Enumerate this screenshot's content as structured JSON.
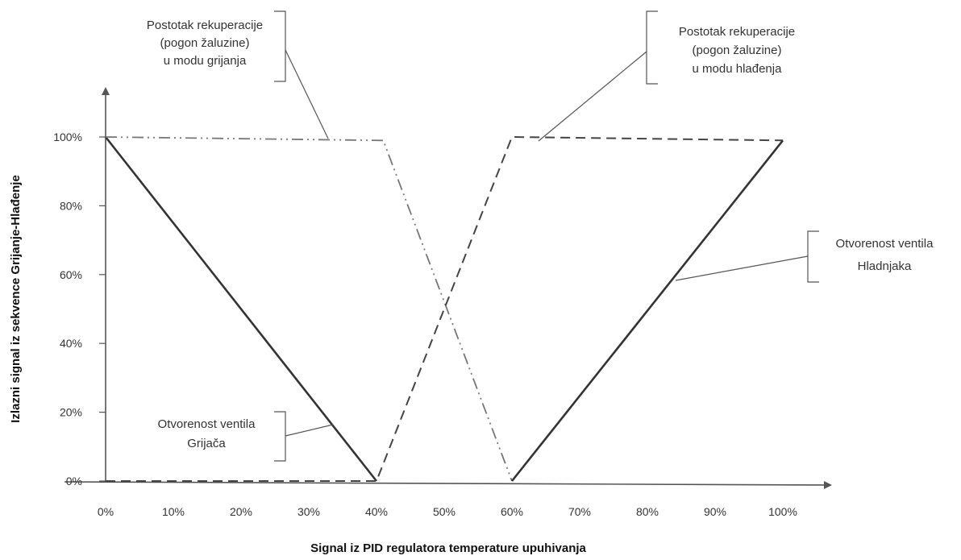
{
  "chart_data": {
    "type": "line",
    "xlabel": "Signal iz PID regulatora temperature upuhivanja",
    "ylabel": "Izlazni signal iz sekvence Grijanje-Hlađenje",
    "x_ticks": [
      "0%",
      "10%",
      "20%",
      "30%",
      "40%",
      "50%",
      "60%",
      "70%",
      "80%",
      "90%",
      "100%"
    ],
    "y_ticks": [
      "0%",
      "20%",
      "40%",
      "60%",
      "80%",
      "100%"
    ],
    "xlim": [
      0,
      100
    ],
    "ylim": [
      0,
      100
    ],
    "grid": false,
    "series": [
      {
        "key": "heating_valve",
        "line_style": "solid",
        "color": "#333333",
        "points": [
          [
            0,
            100
          ],
          [
            40,
            0
          ]
        ]
      },
      {
        "key": "recovery_heating",
        "line_style": "dash-dot-dot",
        "color": "#777777",
        "points": [
          [
            0,
            100
          ],
          [
            41,
            99
          ],
          [
            60,
            0
          ]
        ]
      },
      {
        "key": "recovery_cooling",
        "line_style": "dashed",
        "color": "#444444",
        "points": [
          [
            0,
            0
          ],
          [
            40,
            0
          ],
          [
            60,
            100
          ],
          [
            100,
            99
          ]
        ]
      },
      {
        "key": "cooling_valve",
        "line_style": "solid",
        "color": "#333333",
        "points": [
          [
            60,
            0
          ],
          [
            100,
            99
          ]
        ]
      }
    ],
    "annotations": [
      {
        "key": "recovery_heating_label",
        "lines": [
          "Postotak rekuperacije",
          "(pogon žaluzine)",
          "u modu grijanja"
        ]
      },
      {
        "key": "recovery_cooling_label",
        "lines": [
          "Postotak rekuperacije",
          "(pogon žaluzine)",
          "u modu hlađenja"
        ]
      },
      {
        "key": "cooling_valve_label",
        "lines": [
          "Otvorenost ventila",
          "Hladnjaka"
        ]
      },
      {
        "key": "heating_valve_label",
        "lines": [
          "Otvorenost ventila",
          "Grijača"
        ]
      }
    ]
  }
}
